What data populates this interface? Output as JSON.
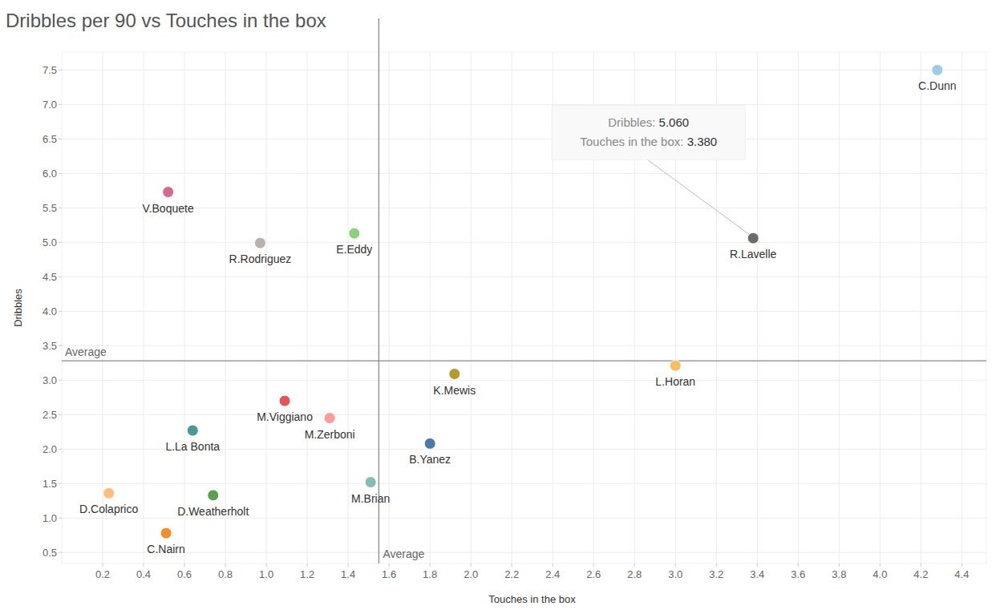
{
  "chart_data": {
    "type": "scatter",
    "title": "Dribbles per 90 vs Touches in the box",
    "x_label": "Touches in the box",
    "y_label": "Dribbles",
    "labels": [
      "C.Dunn",
      "R.Lavelle",
      "L.Horan",
      "K.Mewis",
      "V.Boquete",
      "R.Rodriguez",
      "E.Eddy",
      "M.Viggiano",
      "M.Zerboni",
      "L.La Bonta",
      "B.Yanez",
      "M.Brian",
      "D.Colaprico",
      "D.Weatherholt",
      "C.Nairn"
    ],
    "x": [
      4.28,
      3.38,
      3.0,
      1.92,
      0.52,
      0.97,
      1.43,
      1.09,
      1.31,
      0.64,
      1.8,
      1.51,
      0.23,
      0.74,
      0.51
    ],
    "values": [
      7.5,
      5.06,
      3.21,
      3.09,
      5.73,
      4.99,
      5.13,
      2.7,
      2.45,
      2.27,
      2.08,
      1.52,
      1.36,
      1.33,
      0.78
    ],
    "colors": [
      "#a0cbe8",
      "#6f6a6a",
      "#f6bf64",
      "#b69a2c",
      "#d16c8f",
      "#bab0ac",
      "#8cd17d",
      "#e15759",
      "#ff9d9a",
      "#499894",
      "#4e79a7",
      "#86bcb6",
      "#ffbe7d",
      "#59a14f",
      "#f28e2b"
    ],
    "marker": "circle",
    "xlim": [
      0,
      4.52
    ],
    "ylim": [
      0.34,
      7.76
    ],
    "xticks": [
      0.2,
      0.4,
      0.6,
      0.8,
      {
        "value": 1,
        "label": "1.0"
      },
      1.2,
      1.4,
      1.6,
      1.8,
      {
        "value": 2,
        "label": "2.0"
      },
      2.2,
      2.4,
      2.6,
      2.8,
      {
        "value": 3,
        "label": "3.0"
      },
      3.2,
      3.4,
      3.6,
      3.8,
      {
        "value": 4,
        "label": "4.0"
      },
      4.2,
      4.4
    ],
    "yticks": [
      0.5,
      {
        "value": 1,
        "label": "1.0"
      },
      1.5,
      {
        "value": 2,
        "label": "2.0"
      },
      2.5,
      {
        "value": 3,
        "label": "3.0"
      },
      3.5,
      {
        "value": 4,
        "label": "4.0"
      },
      4.5,
      {
        "value": 5,
        "label": "5.0"
      },
      5.5,
      {
        "value": 6,
        "label": "6.0"
      },
      6.5,
      {
        "value": 7,
        "label": "7.0"
      },
      7.5
    ],
    "grid": true,
    "reference_lines": [
      {
        "axis": "x",
        "value": 1.55,
        "label": "Average"
      },
      {
        "axis": "y",
        "value": 3.28,
        "label": "Average"
      }
    ],
    "tooltip": {
      "point": 1,
      "lines": [
        {
          "label": "Dribbles:",
          "value": "5.060"
        },
        {
          "label": "Touches in the box:",
          "value": "3.380"
        }
      ]
    }
  }
}
